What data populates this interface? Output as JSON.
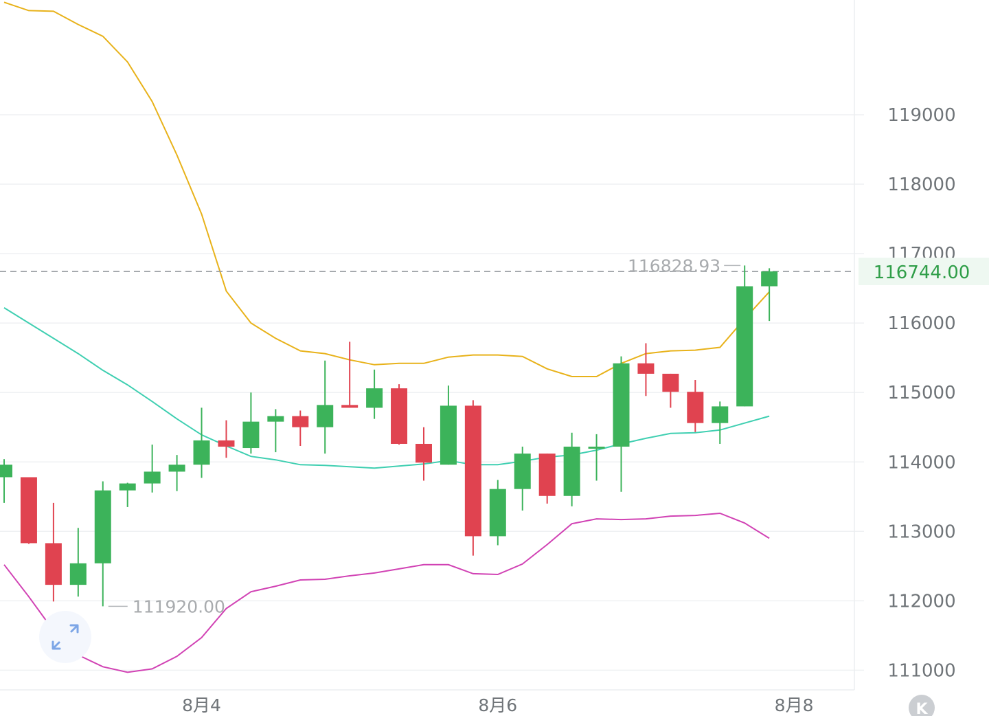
{
  "colors": {
    "up": "#3cb35a",
    "down": "#e04350",
    "upper_band": "#e8b21a",
    "middle_band": "#3fcfb1",
    "lower_band": "#d142b4",
    "grid": "#eff1f3",
    "last_price_text": "#2f9e48",
    "last_price_bg": "#eef8f1",
    "marker_text": "#a8abae",
    "axis_text": "#6f7478"
  },
  "icons": {
    "expand": "expand-arrows-icon",
    "logo": "k-logo-icon",
    "logo_letter": "K"
  },
  "chart_data": {
    "type": "candlestick",
    "y_ticks": [
      "119000",
      "118000",
      "117000",
      "116000",
      "115000",
      "114000",
      "113000",
      "112000",
      "111000"
    ],
    "x_labels": [
      {
        "label": "8月4",
        "index": 8
      },
      {
        "label": "8月6",
        "index": 20
      },
      {
        "label": "8月8",
        "index": 32
      }
    ],
    "ylim": [
      110700,
      120700
    ],
    "last_price": {
      "label": "116744.00",
      "value": 116744
    },
    "max_marker": {
      "label": "116828.93",
      "value": 116828.93,
      "index": 30
    },
    "min_marker": {
      "label": "111920.00",
      "value": 111920,
      "index": 4
    },
    "candles": [
      {
        "o": 113780,
        "h": 114040,
        "l": 113410,
        "c": 113960
      },
      {
        "o": 113780,
        "h": 113780,
        "l": 112820,
        "c": 112830
      },
      {
        "o": 112830,
        "h": 113410,
        "l": 111990,
        "c": 112230
      },
      {
        "o": 112230,
        "h": 113050,
        "l": 112060,
        "c": 112540
      },
      {
        "o": 112540,
        "h": 113720,
        "l": 111920,
        "c": 113590
      },
      {
        "o": 113590,
        "h": 113700,
        "l": 113350,
        "c": 113690
      },
      {
        "o": 113690,
        "h": 114250,
        "l": 113560,
        "c": 113860
      },
      {
        "o": 113860,
        "h": 114100,
        "l": 113580,
        "c": 113960
      },
      {
        "o": 113960,
        "h": 114780,
        "l": 113770,
        "c": 114310
      },
      {
        "o": 114310,
        "h": 114600,
        "l": 114060,
        "c": 114220
      },
      {
        "o": 114200,
        "h": 115000,
        "l": 114120,
        "c": 114580
      },
      {
        "o": 114580,
        "h": 114760,
        "l": 114140,
        "c": 114660
      },
      {
        "o": 114660,
        "h": 114740,
        "l": 114230,
        "c": 114500
      },
      {
        "o": 114500,
        "h": 115460,
        "l": 114120,
        "c": 114820
      },
      {
        "o": 114820,
        "h": 115730,
        "l": 114780,
        "c": 114780
      },
      {
        "o": 114780,
        "h": 115330,
        "l": 114620,
        "c": 115060
      },
      {
        "o": 115060,
        "h": 115120,
        "l": 114250,
        "c": 114260
      },
      {
        "o": 114260,
        "h": 114500,
        "l": 113730,
        "c": 113990
      },
      {
        "o": 113960,
        "h": 115100,
        "l": 113960,
        "c": 114810
      },
      {
        "o": 114810,
        "h": 114890,
        "l": 112650,
        "c": 112930
      },
      {
        "o": 112930,
        "h": 113740,
        "l": 112800,
        "c": 113610
      },
      {
        "o": 113610,
        "h": 114220,
        "l": 113300,
        "c": 114120
      },
      {
        "o": 114120,
        "h": 114120,
        "l": 113400,
        "c": 113510
      },
      {
        "o": 113510,
        "h": 114420,
        "l": 113360,
        "c": 114220
      },
      {
        "o": 114220,
        "h": 114400,
        "l": 113730,
        "c": 114220
      },
      {
        "o": 114220,
        "h": 115520,
        "l": 113570,
        "c": 115420
      },
      {
        "o": 115420,
        "h": 115710,
        "l": 114950,
        "c": 115270
      },
      {
        "o": 115270,
        "h": 115270,
        "l": 114780,
        "c": 115010
      },
      {
        "o": 115010,
        "h": 115180,
        "l": 114430,
        "c": 114560
      },
      {
        "o": 114560,
        "h": 114870,
        "l": 114260,
        "c": 114800
      },
      {
        "o": 114800,
        "h": 116829,
        "l": 114800,
        "c": 116530
      },
      {
        "o": 116530,
        "h": 116790,
        "l": 116030,
        "c": 116744
      }
    ],
    "upper_band": [
      120620,
      120500,
      120490,
      120300,
      120130,
      119760,
      119190,
      118420,
      117570,
      116460,
      116000,
      115780,
      115600,
      115560,
      115470,
      115400,
      115420,
      115420,
      115510,
      115540,
      115540,
      115520,
      115340,
      115230,
      115230,
      115420,
      115560,
      115600,
      115610,
      115650,
      116060,
      116450
    ],
    "middle_band": [
      116220,
      116000,
      115780,
      115560,
      115320,
      115110,
      114870,
      114620,
      114390,
      114230,
      114080,
      114030,
      113960,
      113950,
      113930,
      113910,
      113940,
      113970,
      114020,
      113960,
      113960,
      114010,
      114070,
      114100,
      114170,
      114260,
      114340,
      114410,
      114420,
      114460,
      114560,
      114660
    ],
    "lower_band": [
      112520,
      112060,
      111570,
      111220,
      111050,
      110970,
      111020,
      111200,
      111470,
      111890,
      112130,
      112210,
      112300,
      112310,
      112360,
      112400,
      112460,
      112520,
      112520,
      112390,
      112380,
      112530,
      112810,
      113110,
      113180,
      113170,
      113180,
      113220,
      113230,
      113260,
      113120,
      112900
    ]
  }
}
